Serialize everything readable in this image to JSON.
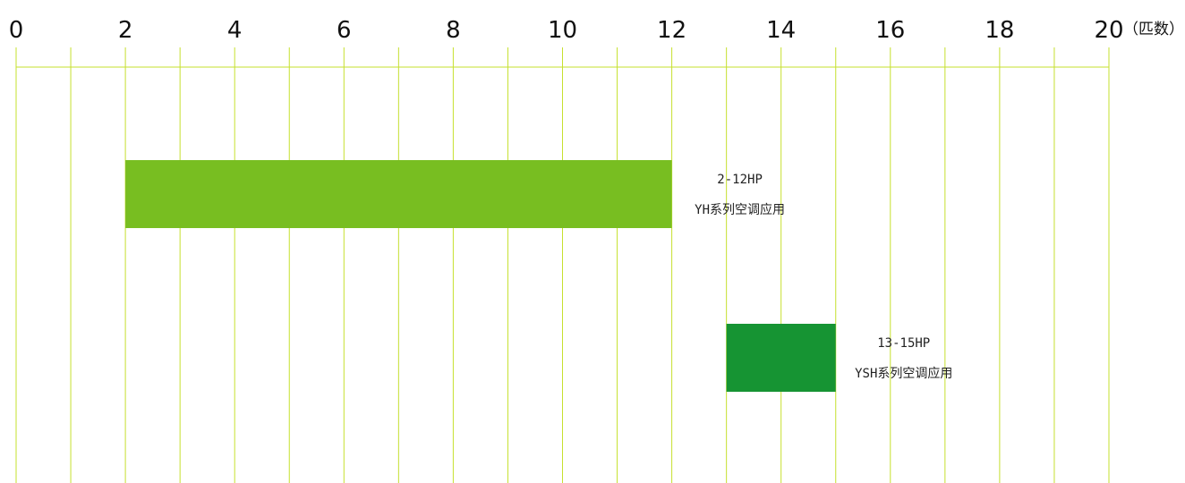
{
  "chart_data": {
    "type": "bar",
    "orientation": "horizontal",
    "x_axis": {
      "min": 0,
      "max": 20,
      "ticks": [
        0,
        2,
        4,
        6,
        8,
        10,
        12,
        14,
        16,
        18,
        20
      ],
      "minor_step": 1,
      "unit_label": "（匹数）",
      "position": "top"
    },
    "grid": true,
    "grid_color": "#c6e02e",
    "bars": [
      {
        "start": 2,
        "end": 12,
        "color": "#78be21",
        "label_line1": "2-12HP",
        "label_line2": "YH系列空调应用"
      },
      {
        "start": 13,
        "end": 15,
        "color": "#169433",
        "label_line1": "13-15HP",
        "label_line2": "YSH系列空调应用"
      }
    ]
  }
}
